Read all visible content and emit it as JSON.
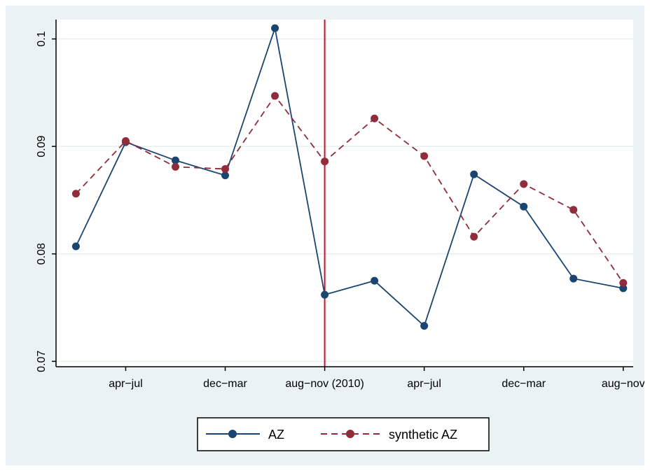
{
  "chart_data": {
    "type": "line",
    "x_tick_labels": [
      "apr−jul",
      "dec−mar",
      "aug−nov (2010)",
      "apr−jul",
      "dec−mar",
      "aug−nov"
    ],
    "x_tick_positions": [
      2,
      4,
      6,
      8,
      10,
      12
    ],
    "xlim": [
      0.6,
      12.2
    ],
    "ylim": [
      0.0695,
      0.1018
    ],
    "y_ticks": [
      0.07,
      0.08,
      0.09,
      0.1
    ],
    "y_tick_labels": [
      "0.07",
      "0.08",
      "0.09",
      "0.1"
    ],
    "grid": true,
    "vline": {
      "x": 6,
      "color": "#c4132f"
    },
    "x": [
      1,
      2,
      3,
      4,
      5,
      6,
      7,
      8,
      9,
      10,
      11,
      12
    ],
    "series": [
      {
        "name": "AZ",
        "color": "#1a4571",
        "dash": "solid",
        "values": [
          0.0807,
          0.0904,
          0.0887,
          0.0873,
          0.101,
          0.0762,
          0.0775,
          0.0733,
          0.0874,
          0.0844,
          0.0777,
          0.0768
        ]
      },
      {
        "name": "synthetic AZ",
        "color": "#8f2d3a",
        "dash": "dashed",
        "values": [
          0.0856,
          0.0905,
          0.0881,
          0.0879,
          0.0947,
          0.0886,
          0.0926,
          0.0891,
          0.0816,
          0.0865,
          0.0841,
          0.0773
        ]
      }
    ],
    "legend": {
      "placement": "bottom-center",
      "entries": [
        "AZ",
        "synthetic AZ"
      ]
    }
  }
}
